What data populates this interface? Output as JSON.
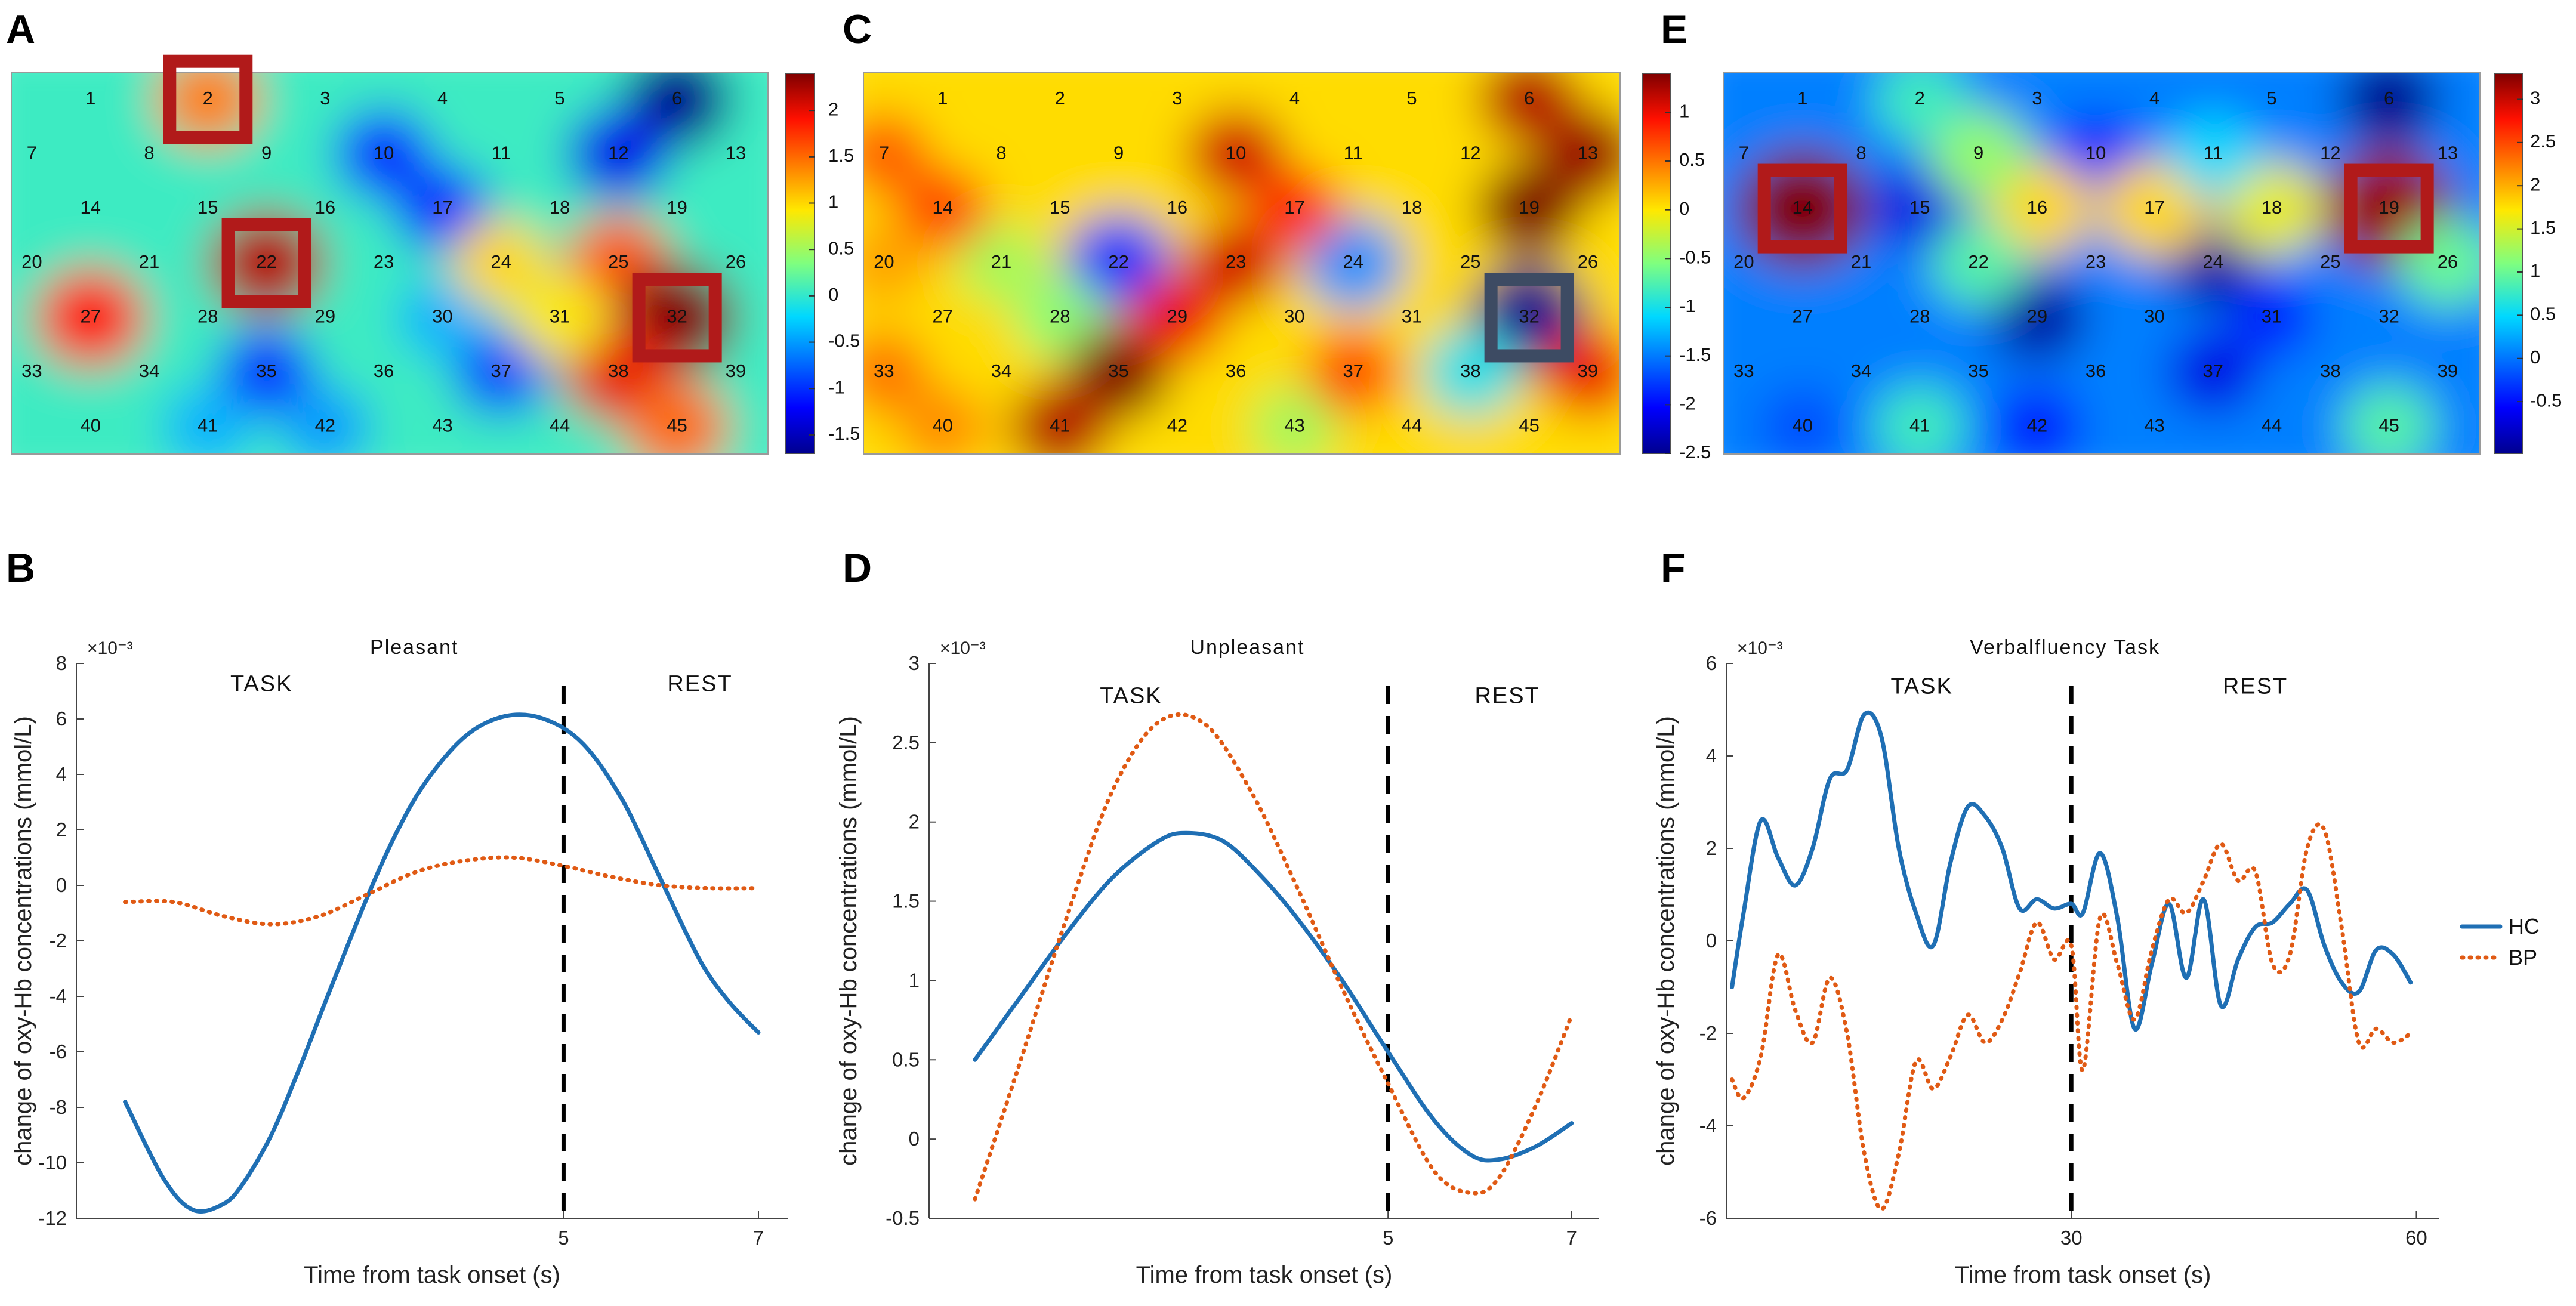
{
  "panels": {
    "A": "A",
    "B": "B",
    "C": "C",
    "D": "D",
    "E": "E",
    "F": "F"
  },
  "heatmaps": [
    {
      "panel": "A",
      "colorbar": {
        "min": -1.7,
        "max": 2.4,
        "ticks": [
          "2",
          "1.5",
          "1",
          "0.5",
          "0",
          "-0.5",
          "-1",
          "-1.5"
        ],
        "tick_values": [
          2,
          1.5,
          1,
          0.5,
          0,
          -0.5,
          -1,
          -1.5
        ]
      },
      "highlight_channels": [
        2,
        22,
        32
      ],
      "highlight_color": "#b11a1a",
      "blobs": [
        [
          6,
          -1.7
        ],
        [
          12,
          -1.3
        ],
        [
          10,
          -1.0
        ],
        [
          17,
          -1.0
        ],
        [
          35,
          -1.0
        ],
        [
          37,
          -0.9
        ],
        [
          42,
          -0.5
        ],
        [
          41,
          -0.4
        ],
        [
          30,
          -0.4
        ],
        [
          2,
          1.4
        ],
        [
          22,
          2.2
        ],
        [
          27,
          1.9
        ],
        [
          25,
          1.6
        ],
        [
          32,
          2.4
        ],
        [
          38,
          2.0
        ],
        [
          45,
          1.5
        ],
        [
          24,
          1.0
        ],
        [
          31,
          0.9
        ]
      ]
    },
    {
      "panel": "C",
      "colorbar": {
        "min": -2.5,
        "max": 1.4,
        "ticks": [
          "1",
          "0.5",
          "0",
          "-0.5",
          "-1",
          "-1.5",
          "-2",
          "-2.5"
        ],
        "tick_values": [
          1,
          0.5,
          0,
          -0.5,
          -1,
          -1.5,
          -2,
          -2.5
        ]
      },
      "highlight_channels": [
        32
      ],
      "highlight_color": "#3d4b63",
      "blobs": [
        [
          22,
          -1.8
        ],
        [
          32,
          -2.5
        ],
        [
          24,
          -1.4
        ],
        [
          38,
          -1.0
        ],
        [
          28,
          -0.5
        ],
        [
          21,
          -0.4
        ],
        [
          43,
          -0.4
        ],
        [
          10,
          1.1
        ],
        [
          13,
          1.3
        ],
        [
          19,
          1.4
        ],
        [
          6,
          1.2
        ],
        [
          35,
          1.4
        ],
        [
          41,
          1.2
        ],
        [
          23,
          1.1
        ],
        [
          29,
          1.0
        ],
        [
          17,
          0.8
        ],
        [
          14,
          0.7
        ],
        [
          7,
          0.6
        ],
        [
          37,
          0.7
        ],
        [
          39,
          1.0
        ],
        [
          33,
          0.5
        ],
        [
          40,
          0.4
        ],
        [
          20,
          0.3
        ]
      ]
    },
    {
      "panel": "E",
      "colorbar": {
        "min": -1.1,
        "max": 3.3,
        "ticks": [
          "3",
          "2.5",
          "2",
          "1.5",
          "1",
          "0.5",
          "0",
          "-0.5"
        ],
        "tick_values": [
          3,
          2.5,
          2,
          1.5,
          1,
          0.5,
          0,
          -0.5
        ]
      },
      "highlight_channels": [
        14,
        19
      ],
      "highlight_color": "#b11a1a",
      "blobs": [
        [
          6,
          -1.1
        ],
        [
          24,
          -1.0
        ],
        [
          29,
          -1.0
        ],
        [
          15,
          -0.7
        ],
        [
          10,
          -0.5
        ],
        [
          37,
          -0.7
        ],
        [
          42,
          -0.5
        ],
        [
          31,
          -0.4
        ],
        [
          40,
          -0.2
        ],
        [
          14,
          3.3
        ],
        [
          19,
          3.2
        ],
        [
          16,
          1.8
        ],
        [
          17,
          1.8
        ],
        [
          18,
          1.6
        ],
        [
          9,
          1.2
        ],
        [
          22,
          0.9
        ],
        [
          2,
          0.8
        ],
        [
          26,
          1.0
        ],
        [
          45,
          0.9
        ],
        [
          41,
          0.8
        ],
        [
          11,
          0.5
        ]
      ]
    }
  ],
  "chart_data": [
    {
      "panel": "B",
      "type": "line",
      "title": "Pleasant",
      "exponent": "×10⁻³",
      "xlabel": "Time from task onset (s)",
      "ylabel": "change of oxy-Hb concentrations (mmol/L)",
      "xlim": [
        0,
        7.3
      ],
      "ylim": [
        -12,
        8
      ],
      "xticks": [
        5,
        7
      ],
      "xtick_labels": [
        "5",
        "7"
      ],
      "yticks": [
        8,
        6,
        4,
        2,
        0,
        -2,
        -4,
        -6,
        -8,
        -10,
        -12
      ],
      "ytick_labels": [
        "8",
        "6",
        "4",
        "2",
        "0",
        "-2",
        "-4",
        "-6",
        "-8",
        "-10",
        "-12"
      ],
      "divider_x": 5,
      "phase_labels": {
        "task": "TASK",
        "rest": "REST"
      },
      "phase_x": {
        "task": 1.9,
        "rest": 6.4
      },
      "phase_y": 7.0,
      "series": [
        {
          "name": "HC",
          "style": "solid",
          "color": "#1f6fb4",
          "x": [
            0.5,
            0.9,
            1.2,
            1.5,
            1.7,
            2.0,
            2.3,
            2.6,
            3.0,
            3.3,
            3.6,
            4.0,
            4.4,
            4.8,
            5.2,
            5.6,
            6.0,
            6.4,
            6.7,
            7.0
          ],
          "y": [
            -7.8,
            -10.6,
            -11.7,
            -11.5,
            -10.8,
            -9.0,
            -6.5,
            -3.8,
            -0.3,
            2.0,
            3.8,
            5.4,
            6.1,
            6.0,
            5.1,
            3.1,
            0.2,
            -2.7,
            -4.2,
            -5.3
          ]
        },
        {
          "name": "BP",
          "style": "dotted",
          "color": "#e05a14",
          "x": [
            0.5,
            1.0,
            1.5,
            2.0,
            2.5,
            3.0,
            3.5,
            4.0,
            4.5,
            5.0,
            5.5,
            6.0,
            6.5,
            7.0
          ],
          "y": [
            -0.6,
            -0.6,
            -1.1,
            -1.4,
            -1.1,
            -0.3,
            0.5,
            0.9,
            1.0,
            0.7,
            0.3,
            0.0,
            -0.1,
            -0.1
          ]
        }
      ]
    },
    {
      "panel": "D",
      "type": "line",
      "title": "Unpleasant",
      "exponent": "×10⁻³",
      "xlabel": "Time from task onset (s)",
      "ylabel": "change of oxy-Hb concentrations (mmol/L)",
      "xlim": [
        0,
        7.3
      ],
      "ylim": [
        -0.5,
        3
      ],
      "xticks": [
        5,
        7
      ],
      "xtick_labels": [
        "5",
        "7"
      ],
      "yticks": [
        3,
        2.5,
        2,
        1.5,
        1,
        0.5,
        0,
        -0.5
      ],
      "ytick_labels": [
        "3",
        "2.5",
        "2",
        "1.5",
        "1",
        "0.5",
        "0",
        "-0.5"
      ],
      "divider_x": 5,
      "phase_labels": {
        "task": "TASK",
        "rest": "REST"
      },
      "phase_x": {
        "task": 2.2,
        "rest": 6.3
      },
      "phase_y": 2.75,
      "series": [
        {
          "name": "HC",
          "style": "solid",
          "color": "#1f6fb4",
          "x": [
            0.5,
            1.0,
            1.5,
            2.0,
            2.5,
            2.8,
            3.2,
            3.6,
            4.0,
            4.5,
            5.0,
            5.5,
            5.9,
            6.2,
            6.6,
            7.0
          ],
          "y": [
            0.5,
            0.9,
            1.3,
            1.65,
            1.88,
            1.93,
            1.88,
            1.67,
            1.4,
            1.0,
            0.55,
            0.12,
            -0.1,
            -0.13,
            -0.05,
            0.1
          ]
        },
        {
          "name": "BP",
          "style": "dotted",
          "color": "#e05a14",
          "x": [
            0.5,
            1.0,
            1.5,
            2.0,
            2.5,
            3.0,
            3.5,
            4.0,
            4.5,
            5.0,
            5.5,
            5.9,
            6.2,
            6.6,
            7.0
          ],
          "y": [
            -0.38,
            0.5,
            1.4,
            2.2,
            2.63,
            2.62,
            2.2,
            1.6,
            0.95,
            0.35,
            -0.2,
            -0.34,
            -0.25,
            0.2,
            0.78
          ]
        }
      ]
    },
    {
      "panel": "F",
      "type": "line",
      "title": "Verbalfluency Task",
      "exponent": "×10⁻³",
      "xlabel": "Time from task onset (s)",
      "ylabel": "change of oxy-Hb concentrations (mmol/L)",
      "xlim": [
        0,
        62
      ],
      "ylim": [
        -6,
        6
      ],
      "xticks": [
        30,
        60
      ],
      "xtick_labels": [
        "30",
        "60"
      ],
      "yticks": [
        6,
        4,
        2,
        0,
        -2,
        -4,
        -6
      ],
      "ytick_labels": [
        "6",
        "4",
        "2",
        "0",
        "-2",
        "-4",
        "-6"
      ],
      "divider_x": 30,
      "phase_labels": {
        "task": "TASK",
        "rest": "REST"
      },
      "phase_x": {
        "task": 17,
        "rest": 46
      },
      "phase_y": 5.35,
      "series": [
        {
          "name": "HC",
          "style": "solid",
          "color": "#1f6fb4",
          "x": [
            0.5,
            1.5,
            3,
            4.5,
            6,
            7.5,
            9,
            10.5,
            12,
            13.5,
            15,
            16.5,
            18,
            19.5,
            21,
            22.5,
            24,
            25.5,
            27,
            28.5,
            30,
            31,
            32.5,
            34,
            35.5,
            37,
            38.5,
            40,
            41.5,
            43,
            44.5,
            46,
            47.5,
            49,
            50.5,
            52,
            53.5,
            55,
            56.5,
            58,
            59.5
          ],
          "y": [
            -1.0,
            0.6,
            2.6,
            1.8,
            1.2,
            2.0,
            3.5,
            3.7,
            4.9,
            4.4,
            2.0,
            0.6,
            -0.1,
            1.7,
            2.9,
            2.7,
            2.0,
            0.7,
            0.9,
            0.7,
            0.8,
            0.6,
            1.9,
            0.5,
            -1.9,
            -0.5,
            0.8,
            -0.8,
            0.9,
            -1.4,
            -0.4,
            0.3,
            0.4,
            0.8,
            1.1,
            -0.1,
            -0.9,
            -1.1,
            -0.2,
            -0.3,
            -0.9
          ]
        },
        {
          "name": "BP",
          "style": "dotted",
          "color": "#e05a14",
          "x": [
            0.5,
            1.5,
            3,
            4.5,
            6,
            7.5,
            9,
            10.5,
            12,
            13.5,
            15,
            16.5,
            18,
            19.5,
            21,
            22.5,
            24,
            25.5,
            27,
            28.5,
            30,
            31,
            32.5,
            34,
            35.5,
            37,
            38.5,
            40,
            41.5,
            43,
            44.5,
            46,
            47.5,
            49,
            50.5,
            52,
            53.5,
            55,
            56.5,
            58,
            59.5
          ],
          "y": [
            -3.0,
            -3.4,
            -2.5,
            -0.3,
            -1.5,
            -2.2,
            -0.8,
            -2.0,
            -4.6,
            -5.8,
            -4.6,
            -2.6,
            -3.2,
            -2.5,
            -1.6,
            -2.2,
            -1.7,
            -0.7,
            0.4,
            -0.4,
            -0.1,
            -2.8,
            0.5,
            -0.5,
            -1.7,
            -0.2,
            0.9,
            0.6,
            1.3,
            2.1,
            1.3,
            1.5,
            -0.5,
            -0.3,
            2.0,
            2.4,
            0.3,
            -2.2,
            -1.9,
            -2.2,
            -2.0
          ]
        }
      ],
      "legend": [
        {
          "name": "HC",
          "style": "solid",
          "color": "#1f6fb4"
        },
        {
          "name": "BP",
          "style": "dotted",
          "color": "#e05a14"
        }
      ]
    }
  ]
}
